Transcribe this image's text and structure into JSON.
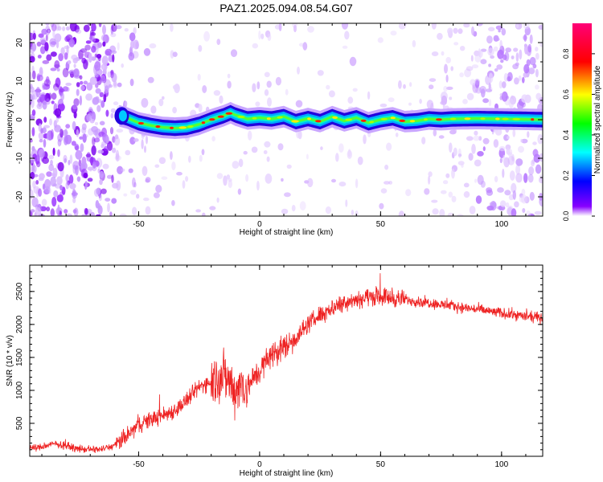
{
  "figure_title": "PAZ1.2025.094.08.54.G07",
  "chart_data": [
    {
      "type": "heatmap",
      "title": "",
      "xlabel": "Height of straight line (km)",
      "ylabel": "Frequency (Hz)",
      "xlim": [
        -95,
        117
      ],
      "ylim": [
        -25,
        25
      ],
      "x_ticks": [
        -50,
        0,
        50,
        100
      ],
      "y_ticks": [
        -20,
        -10,
        0,
        10,
        20
      ],
      "grid": false,
      "colorbar": {
        "label": "Normalized spectral amplitude",
        "range": [
          0,
          0.95
        ],
        "ticks": [
          0.0,
          0.2,
          0.4,
          0.6,
          0.8
        ],
        "colormap": "rainbow (purple-blue-cyan-green-yellow-red-magenta)"
      },
      "ridge_frequency_trace": {
        "x": [
          -58,
          -55,
          -50,
          -45,
          -40,
          -35,
          -30,
          -25,
          -20,
          -15,
          -12,
          -10,
          -5,
          0,
          5,
          10,
          15,
          20,
          25,
          30,
          35,
          40,
          45,
          50,
          55,
          60,
          65,
          70,
          75,
          80,
          90,
          100,
          110,
          117
        ],
        "y": [
          1.0,
          0.5,
          -0.8,
          -1.5,
          -2.0,
          -2.2,
          -2.0,
          -1.2,
          0.0,
          1.0,
          1.8,
          1.2,
          0.2,
          0.5,
          0.2,
          0.8,
          -0.5,
          0.3,
          -0.5,
          0.8,
          -0.3,
          0.5,
          -0.8,
          0.0,
          0.5,
          -0.5,
          -0.3,
          0.2,
          0.0,
          0.2,
          0.3,
          0.2,
          0.1,
          0.0
        ]
      }
    },
    {
      "type": "line",
      "title": "",
      "xlabel": "Height of straight line (km)",
      "ylabel": "SNR (10 * v/v)",
      "xlim": [
        -95,
        117
      ],
      "ylim": [
        0,
        2900
      ],
      "x_ticks": [
        -50,
        0,
        50,
        100
      ],
      "y_ticks": [
        500,
        1000,
        1500,
        2000,
        2500
      ],
      "grid": false,
      "color": "#ee2222",
      "series": [
        {
          "x": [
            -95,
            -90,
            -85,
            -80,
            -75,
            -70,
            -65,
            -60,
            -55,
            -50,
            -45,
            -40,
            -35,
            -30,
            -25,
            -20,
            -15,
            -12,
            -10,
            -8,
            -5,
            0,
            5,
            10,
            15,
            20,
            25,
            30,
            35,
            40,
            45,
            50,
            55,
            60,
            65,
            70,
            75,
            80,
            85,
            90,
            95,
            100,
            105,
            110,
            117
          ],
          "y": [
            130,
            140,
            190,
            160,
            110,
            100,
            110,
            160,
            300,
            480,
            560,
            620,
            700,
            850,
            1050,
            1150,
            1250,
            1100,
            1000,
            1100,
            1050,
            1300,
            1550,
            1650,
            1800,
            2000,
            2150,
            2250,
            2350,
            2380,
            2420,
            2430,
            2400,
            2380,
            2350,
            2330,
            2300,
            2280,
            2250,
            2230,
            2200,
            2170,
            2150,
            2120,
            2100
          ]
        }
      ]
    }
  ]
}
